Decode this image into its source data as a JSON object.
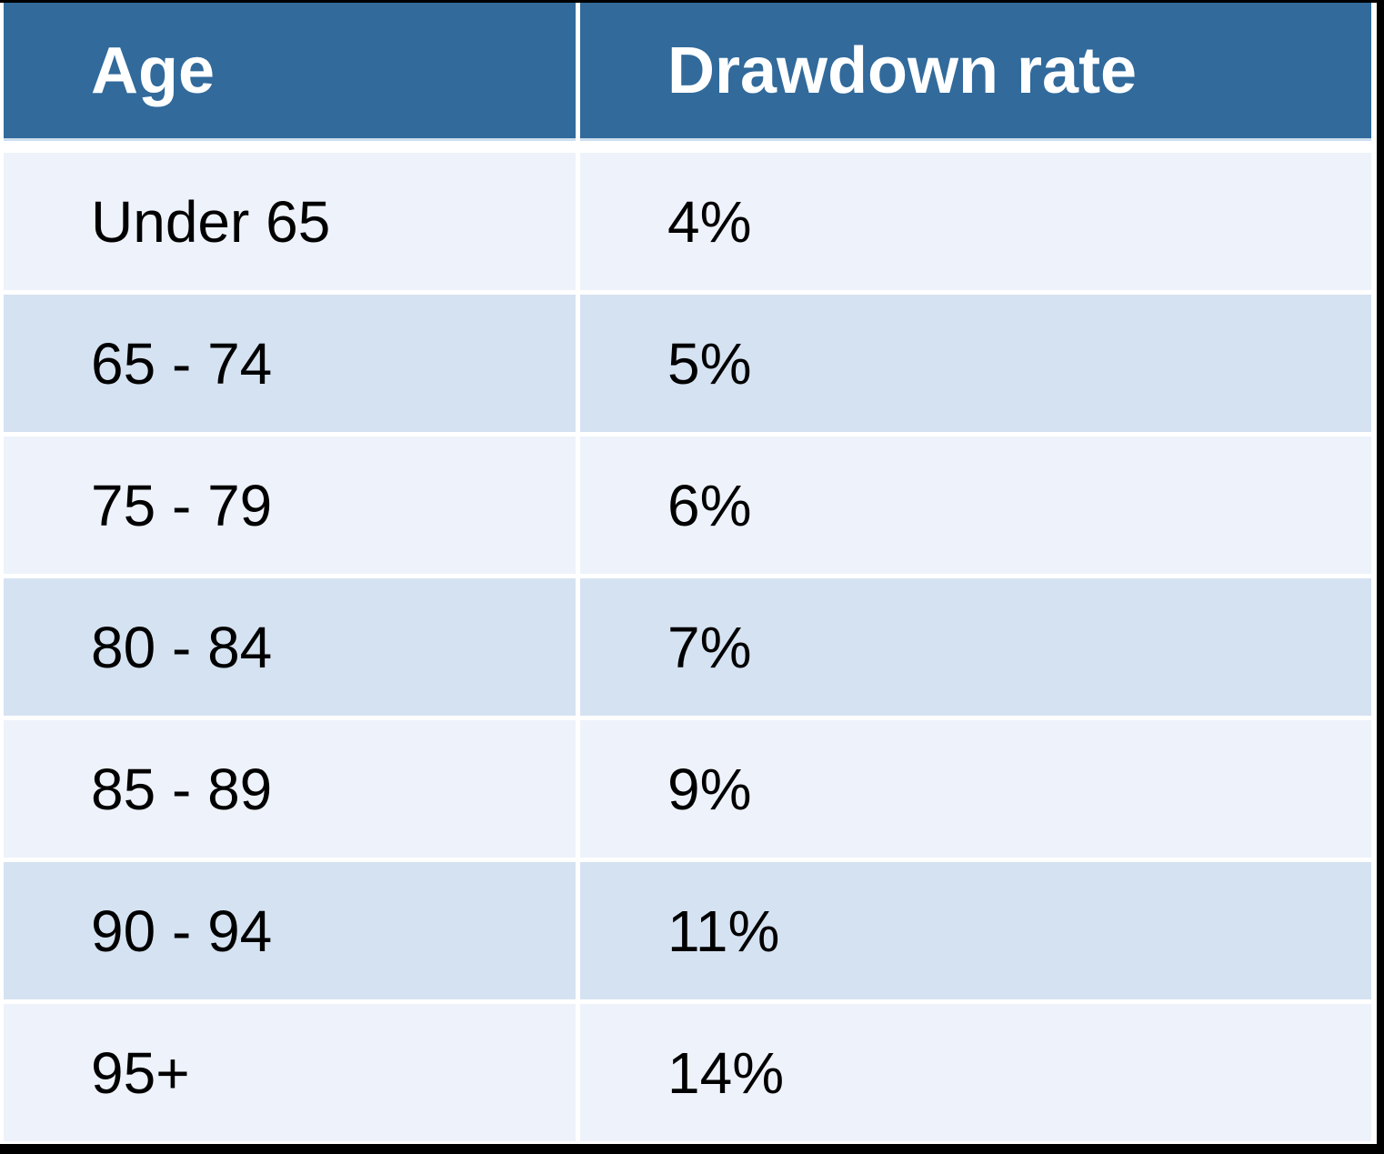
{
  "table": {
    "headers": [
      "Age",
      "Drawdown rate"
    ],
    "rows": [
      {
        "age": "Under 65",
        "rate": "4%"
      },
      {
        "age": "65 - 74",
        "rate": "5%"
      },
      {
        "age": "75 - 79",
        "rate": "6%"
      },
      {
        "age": "80 - 84",
        "rate": "7%"
      },
      {
        "age": "85 - 89",
        "rate": "9%"
      },
      {
        "age": "90 - 94",
        "rate": "11%"
      },
      {
        "age": "95+",
        "rate": "14%"
      }
    ],
    "colors": {
      "header_bg": "#316A9B",
      "header_text": "#FFFFFF",
      "row_light": "#EEF2FA",
      "row_dark": "#D5E2F1",
      "body_text": "#000000",
      "frame_border": "#000000",
      "divider": "#FFFFFF",
      "header_underline": "#CFDFEF"
    }
  },
  "chart_data": {
    "type": "table",
    "title": "",
    "columns": [
      "Age",
      "Drawdown rate"
    ],
    "rows": [
      [
        "Under 65",
        "4%"
      ],
      [
        "65 - 74",
        "5%"
      ],
      [
        "75 - 79",
        "6%"
      ],
      [
        "80 - 84",
        "7%"
      ],
      [
        "85 - 89",
        "9%"
      ],
      [
        "90 - 94",
        "11%"
      ],
      [
        "95+",
        "14%"
      ]
    ]
  }
}
